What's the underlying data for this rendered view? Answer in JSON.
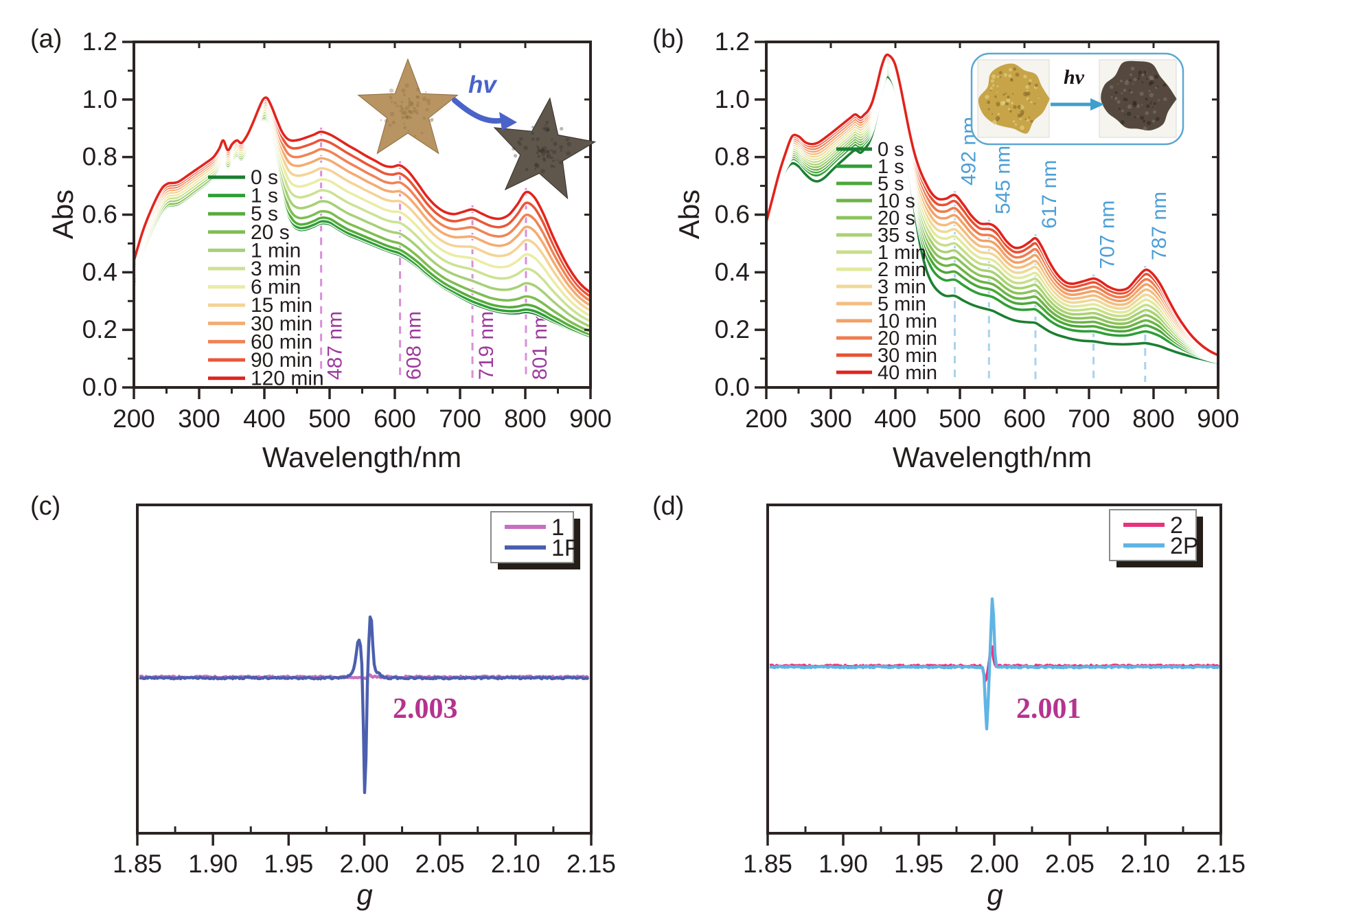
{
  "figure_bg": "#ffffff",
  "text_color": "#231d1d",
  "spine_color": "#2b2422",
  "chart_data": [
    {
      "panel_label": "(a)",
      "type": "line",
      "xlabel": "Wavelength/nm",
      "ylabel": "Abs",
      "xlim": [
        200,
        900
      ],
      "ylim": [
        0.0,
        1.2
      ],
      "x_ticks": [
        "200",
        "300",
        "400",
        "500",
        "600",
        "700",
        "800",
        "900"
      ],
      "y_ticks": [
        "0.0",
        "0.2",
        "0.4",
        "0.6",
        "0.8",
        "1.0",
        "1.2"
      ],
      "legend_position": "inside-left",
      "marker_line_color": "#d98fd9",
      "marker_label_color": "#9d3a9d",
      "peak_markers": [
        {
          "wavelength": 487,
          "label": "487 nm"
        },
        {
          "wavelength": 608,
          "label": "608 nm"
        },
        {
          "wavelength": 719,
          "label": "719 nm"
        },
        {
          "wavelength": 801,
          "label": "801 nm"
        }
      ],
      "series": [
        {
          "name": "0 s",
          "color": "#1b7f31",
          "t": 0.0
        },
        {
          "name": "1 s",
          "color": "#2f9e36",
          "t": 0.02
        },
        {
          "name": "5 s",
          "color": "#56ac3c",
          "t": 0.06
        },
        {
          "name": "20 s",
          "color": "#7fbd52",
          "t": 0.13
        },
        {
          "name": "1 min",
          "color": "#a7d077",
          "t": 0.24
        },
        {
          "name": "3 min",
          "color": "#cce294",
          "t": 0.36
        },
        {
          "name": "6 min",
          "color": "#ebeca4",
          "t": 0.48
        },
        {
          "name": "15 min",
          "color": "#f5d395",
          "t": 0.6
        },
        {
          "name": "30 min",
          "color": "#f4ab71",
          "t": 0.71
        },
        {
          "name": "60 min",
          "color": "#f08355",
          "t": 0.81
        },
        {
          "name": "90 min",
          "color": "#ea5637",
          "t": 0.91
        },
        {
          "name": "120 min",
          "color": "#e1251d",
          "t": 1.0
        }
      ],
      "envelope_note": "columns: wavelength nm, Abs at 0 s, Abs at 120 min; intermediate curves interpolate by t",
      "envelope": [
        [
          200,
          0.35,
          0.44
        ],
        [
          214,
          0.455,
          0.545
        ],
        [
          228,
          0.535,
          0.625
        ],
        [
          242,
          0.598,
          0.688
        ],
        [
          252,
          0.625,
          0.708
        ],
        [
          260,
          0.628,
          0.71
        ],
        [
          268,
          0.632,
          0.714
        ],
        [
          280,
          0.65,
          0.732
        ],
        [
          294,
          0.674,
          0.754
        ],
        [
          308,
          0.698,
          0.776
        ],
        [
          322,
          0.726,
          0.8
        ],
        [
          331,
          0.762,
          0.83
        ],
        [
          337,
          0.795,
          0.858
        ],
        [
          344,
          0.762,
          0.824
        ],
        [
          351,
          0.786,
          0.846
        ],
        [
          358,
          0.8,
          0.858
        ],
        [
          365,
          0.789,
          0.849
        ],
        [
          374,
          0.82,
          0.877
        ],
        [
          383,
          0.868,
          0.922
        ],
        [
          391,
          0.912,
          0.966
        ],
        [
          398,
          0.928,
          1.0
        ],
        [
          404,
          0.921,
          1.005
        ],
        [
          411,
          0.878,
          0.976
        ],
        [
          419,
          0.792,
          0.93
        ],
        [
          427,
          0.69,
          0.888
        ],
        [
          435,
          0.608,
          0.864
        ],
        [
          443,
          0.566,
          0.857
        ],
        [
          453,
          0.548,
          0.86
        ],
        [
          464,
          0.549,
          0.868
        ],
        [
          476,
          0.559,
          0.878
        ],
        [
          487,
          0.57,
          0.888
        ],
        [
          500,
          0.567,
          0.879
        ],
        [
          514,
          0.548,
          0.861
        ],
        [
          528,
          0.53,
          0.841
        ],
        [
          542,
          0.517,
          0.823
        ],
        [
          556,
          0.504,
          0.804
        ],
        [
          570,
          0.491,
          0.787
        ],
        [
          584,
          0.478,
          0.77
        ],
        [
          596,
          0.468,
          0.766
        ],
        [
          608,
          0.459,
          0.771
        ],
        [
          621,
          0.441,
          0.749
        ],
        [
          635,
          0.418,
          0.708
        ],
        [
          649,
          0.391,
          0.664
        ],
        [
          663,
          0.366,
          0.63
        ],
        [
          677,
          0.344,
          0.609
        ],
        [
          691,
          0.326,
          0.602
        ],
        [
          705,
          0.308,
          0.61
        ],
        [
          719,
          0.292,
          0.618
        ],
        [
          733,
          0.28,
          0.604
        ],
        [
          747,
          0.269,
          0.59
        ],
        [
          761,
          0.262,
          0.586
        ],
        [
          775,
          0.258,
          0.6
        ],
        [
          788,
          0.258,
          0.636
        ],
        [
          801,
          0.262,
          0.678
        ],
        [
          814,
          0.257,
          0.66
        ],
        [
          827,
          0.245,
          0.607
        ],
        [
          840,
          0.231,
          0.537
        ],
        [
          853,
          0.218,
          0.473
        ],
        [
          866,
          0.204,
          0.418
        ],
        [
          879,
          0.192,
          0.374
        ],
        [
          890,
          0.182,
          0.347
        ],
        [
          900,
          0.174,
          0.33
        ]
      ],
      "inset": {
        "hv_label": "hv",
        "arrow_color": "#4a63c8",
        "star_before_color": "#b89463",
        "star_after_color": "#5f564c"
      }
    },
    {
      "panel_label": "(b)",
      "type": "line",
      "xlabel": "Wavelength/nm",
      "ylabel": "Abs",
      "xlim": [
        200,
        900
      ],
      "ylim": [
        0.0,
        1.2
      ],
      "x_ticks": [
        "200",
        "300",
        "400",
        "500",
        "600",
        "700",
        "800",
        "900"
      ],
      "y_ticks": [
        "0.0",
        "0.2",
        "0.4",
        "0.6",
        "0.8",
        "1.0",
        "1.2"
      ],
      "legend_position": "inside-left",
      "marker_line_color": "#a8d3ee",
      "marker_label_color": "#4d9fd6",
      "peak_markers": [
        {
          "wavelength": 492,
          "label": "492 nm"
        },
        {
          "wavelength": 545,
          "label": "545 nm"
        },
        {
          "wavelength": 617,
          "label": "617 nm"
        },
        {
          "wavelength": 707,
          "label": "707 nm"
        },
        {
          "wavelength": 787,
          "label": "787 nm"
        }
      ],
      "series": [
        {
          "name": "0 s",
          "color": "#1b7f31",
          "t": 0.0
        },
        {
          "name": "1 s",
          "color": "#2f9e36",
          "t": 0.16
        },
        {
          "name": "5 s",
          "color": "#4da73a",
          "t": 0.24
        },
        {
          "name": "10 s",
          "color": "#6db447",
          "t": 0.31
        },
        {
          "name": "20 s",
          "color": "#8cc35b",
          "t": 0.38
        },
        {
          "name": "35 s",
          "color": "#a9d172",
          "t": 0.45
        },
        {
          "name": "1 min",
          "color": "#c6de89",
          "t": 0.52
        },
        {
          "name": "2 min",
          "color": "#e2e99c",
          "t": 0.59
        },
        {
          "name": "3 min",
          "color": "#f0d898",
          "t": 0.66
        },
        {
          "name": "5 min",
          "color": "#f4bd7f",
          "t": 0.73
        },
        {
          "name": "10 min",
          "color": "#f2a167",
          "t": 0.8
        },
        {
          "name": "20 min",
          "color": "#ee7c4f",
          "t": 0.87
        },
        {
          "name": "30 min",
          "color": "#e85232",
          "t": 0.94
        },
        {
          "name": "40 min",
          "color": "#e0231c",
          "t": 1.0
        }
      ],
      "envelope_note": "columns: wavelength nm, Abs at 0 s, Abs at 40 min; intermediate curves interpolate by t",
      "envelope": [
        [
          200,
          0.555,
          0.575
        ],
        [
          210,
          0.635,
          0.66
        ],
        [
          220,
          0.705,
          0.745
        ],
        [
          230,
          0.755,
          0.815
        ],
        [
          240,
          0.778,
          0.872
        ],
        [
          250,
          0.768,
          0.872
        ],
        [
          260,
          0.742,
          0.852
        ],
        [
          270,
          0.722,
          0.845
        ],
        [
          280,
          0.716,
          0.85
        ],
        [
          290,
          0.728,
          0.865
        ],
        [
          300,
          0.75,
          0.882
        ],
        [
          310,
          0.772,
          0.9
        ],
        [
          320,
          0.792,
          0.918
        ],
        [
          330,
          0.812,
          0.936
        ],
        [
          338,
          0.824,
          0.948
        ],
        [
          346,
          0.815,
          0.937
        ],
        [
          352,
          0.828,
          0.948
        ],
        [
          358,
          0.845,
          0.962
        ],
        [
          364,
          0.878,
          0.99
        ],
        [
          371,
          0.94,
          1.045
        ],
        [
          378,
          1.02,
          1.11
        ],
        [
          385,
          1.075,
          1.152
        ],
        [
          392,
          1.072,
          1.15
        ],
        [
          399,
          1.04,
          1.125
        ],
        [
          406,
          0.975,
          1.065
        ],
        [
          414,
          0.87,
          0.975
        ],
        [
          422,
          0.74,
          0.885
        ],
        [
          430,
          0.61,
          0.81
        ],
        [
          438,
          0.5,
          0.755
        ],
        [
          447,
          0.415,
          0.71
        ],
        [
          456,
          0.365,
          0.675
        ],
        [
          466,
          0.335,
          0.655
        ],
        [
          478,
          0.318,
          0.655
        ],
        [
          492,
          0.318,
          0.668
        ],
        [
          505,
          0.302,
          0.636
        ],
        [
          518,
          0.288,
          0.596
        ],
        [
          531,
          0.278,
          0.57
        ],
        [
          545,
          0.27,
          0.568
        ],
        [
          552,
          0.265,
          0.562
        ],
        [
          560,
          0.256,
          0.545
        ],
        [
          572,
          0.243,
          0.508
        ],
        [
          584,
          0.233,
          0.486
        ],
        [
          596,
          0.228,
          0.488
        ],
        [
          608,
          0.226,
          0.505
        ],
        [
          617,
          0.224,
          0.518
        ],
        [
          626,
          0.212,
          0.492
        ],
        [
          638,
          0.195,
          0.438
        ],
        [
          650,
          0.183,
          0.395
        ],
        [
          662,
          0.175,
          0.368
        ],
        [
          674,
          0.168,
          0.36
        ],
        [
          690,
          0.162,
          0.368
        ],
        [
          707,
          0.16,
          0.378
        ],
        [
          718,
          0.156,
          0.368
        ],
        [
          730,
          0.152,
          0.35
        ],
        [
          745,
          0.15,
          0.338
        ],
        [
          760,
          0.15,
          0.345
        ],
        [
          775,
          0.152,
          0.382
        ],
        [
          787,
          0.154,
          0.408
        ],
        [
          797,
          0.15,
          0.398
        ],
        [
          810,
          0.143,
          0.36
        ],
        [
          823,
          0.132,
          0.305
        ],
        [
          836,
          0.122,
          0.252
        ],
        [
          849,
          0.113,
          0.208
        ],
        [
          862,
          0.105,
          0.172
        ],
        [
          875,
          0.098,
          0.145
        ],
        [
          888,
          0.091,
          0.125
        ],
        [
          900,
          0.086,
          0.112
        ]
      ],
      "inset": {
        "hv_label": "hv",
        "arrow_color": "#3f9fcc",
        "border_color": "#5aa7d0",
        "powder_before_color": "#c7a448",
        "powder_after_color": "#55493f"
      }
    },
    {
      "panel_label": "(c)",
      "type": "line",
      "xlabel": "g",
      "xlim": [
        1.85,
        2.15
      ],
      "x_ticks": [
        "1.85",
        "1.90",
        "1.95",
        "2.00",
        "2.05",
        "2.10",
        "2.15"
      ],
      "annotation": "2.003",
      "annotation_color": "#b5338f",
      "legend_position": "inside-top-right",
      "series_note": "lobes: [g center, relative intensity, width]; derivative EPR signal about baseline",
      "series": [
        {
          "name": "1",
          "color": "#c86fc0",
          "lobes": [
            [
              2.0,
              -3,
              0.002
            ],
            [
              2.0035,
              2.5,
              0.002
            ]
          ]
        },
        {
          "name": "1P",
          "color": "#4c5fae",
          "lobes": [
            [
              1.9965,
              52,
              0.0025
            ],
            [
              2.0004,
              -178,
              0.0012
            ],
            [
              2.0042,
              87,
              0.0016
            ],
            [
              1.993,
              6,
              0.005
            ],
            [
              2.007,
              10,
              0.004
            ]
          ]
        }
      ]
    },
    {
      "panel_label": "(d)",
      "type": "line",
      "xlabel": "g",
      "xlim": [
        1.85,
        2.15
      ],
      "x_ticks": [
        "1.85",
        "1.90",
        "1.95",
        "2.00",
        "2.05",
        "2.10",
        "2.15"
      ],
      "annotation": "2.001",
      "annotation_color": "#b5338f",
      "legend_position": "inside-top-right",
      "series_note": "lobes: [g center, relative intensity, width]; derivative EPR signal about baseline",
      "series": [
        {
          "name": "2",
          "color": "#e8327d",
          "lobes": [
            [
              1.9943,
              -21,
              0.0014
            ],
            [
              1.9982,
              31,
              0.0013
            ]
          ]
        },
        {
          "name": "2P",
          "color": "#60b4e4",
          "lobes": [
            [
              1.995,
              -89,
              0.0013
            ],
            [
              1.9988,
              101,
              0.0013
            ]
          ]
        }
      ]
    }
  ]
}
